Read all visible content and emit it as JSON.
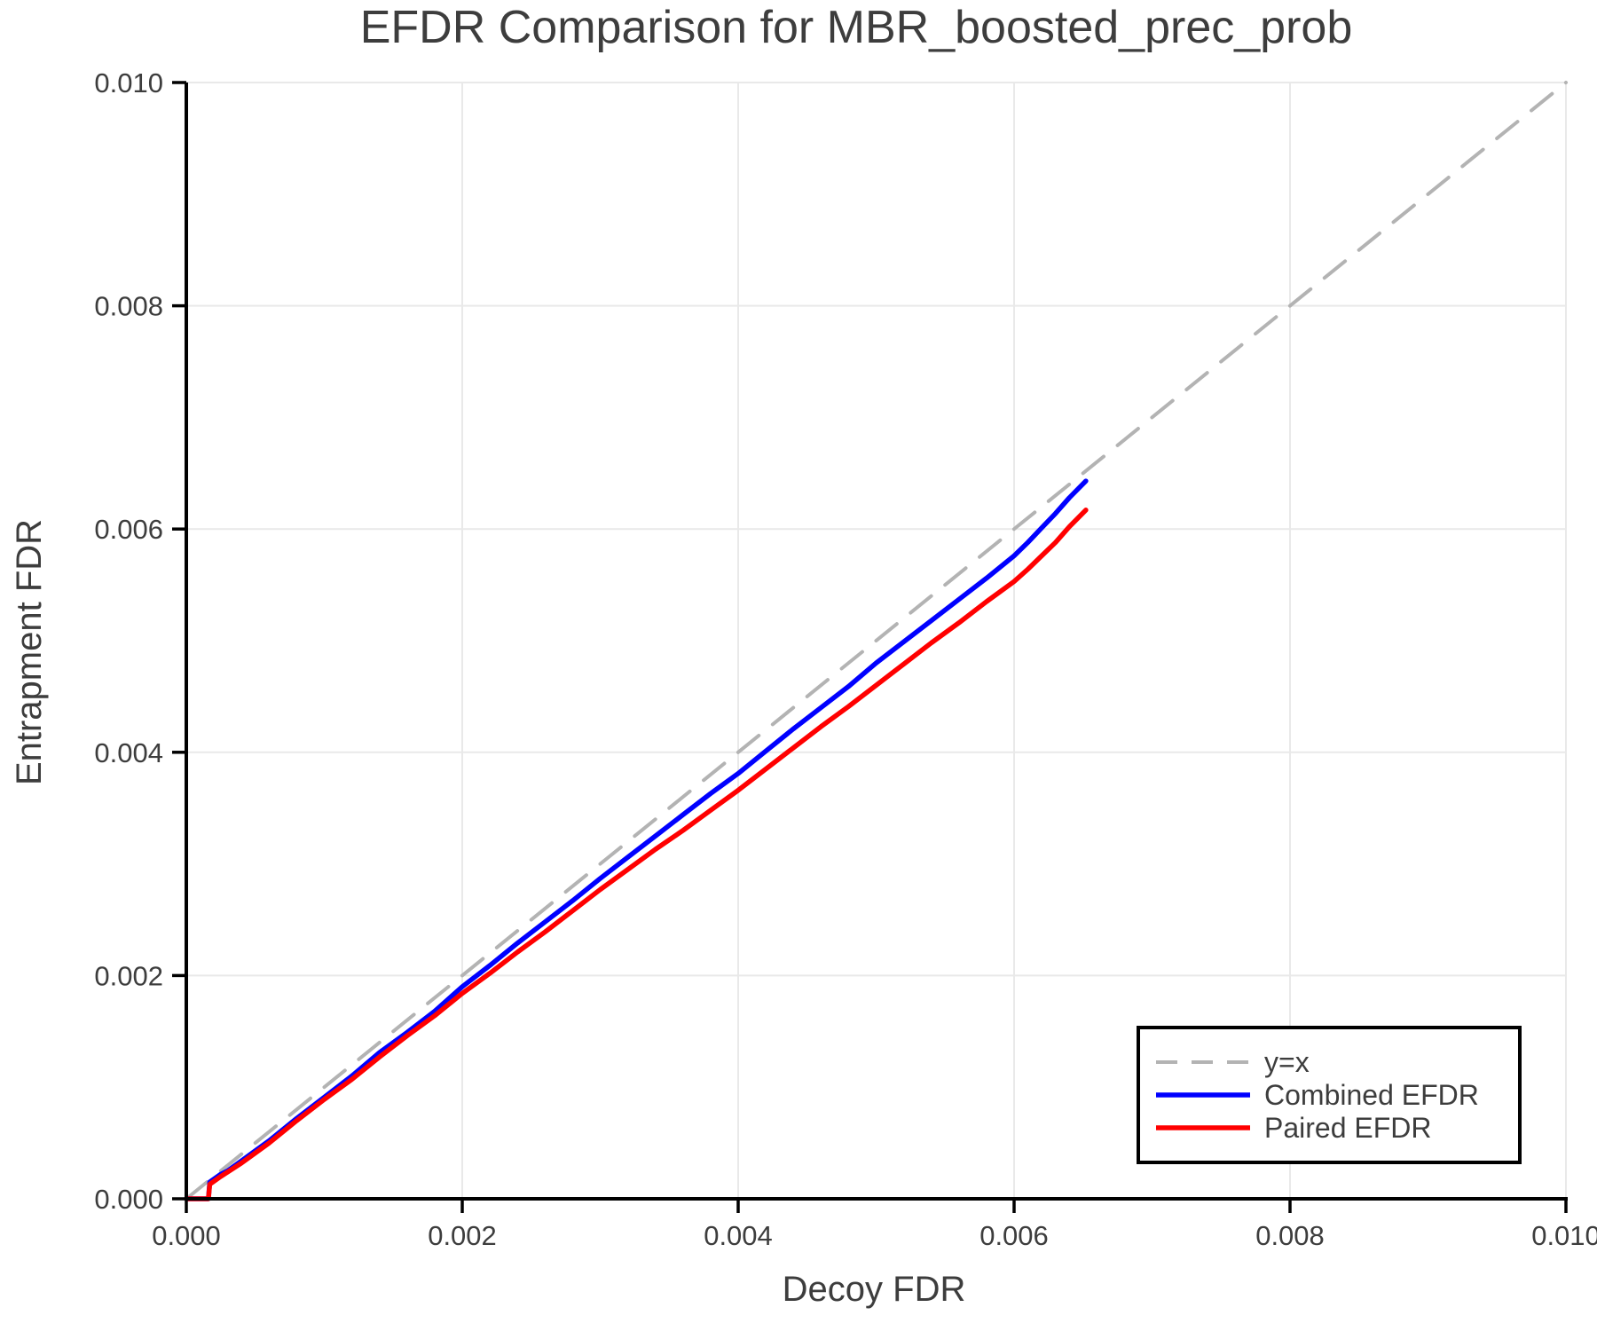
{
  "title": "EFDR Comparison for MBR_boosted_prec_prob",
  "chart_data": {
    "type": "line",
    "title": "EFDR Comparison for MBR_boosted_prec_prob",
    "xlabel": "Decoy FDR",
    "ylabel": "Entrapment FDR",
    "xlim": [
      0.0,
      0.01
    ],
    "ylim": [
      0.0,
      0.01
    ],
    "xtick_labels": [
      "0.000",
      "0.002",
      "0.004",
      "0.006",
      "0.008",
      "0.010"
    ],
    "ytick_labels": [
      "0.000",
      "0.002",
      "0.004",
      "0.006",
      "0.008",
      "0.010"
    ],
    "grid": true,
    "legend_position": "bottom-right",
    "series": [
      {
        "name": "y=x",
        "style": "dashed",
        "color": "#b3b3b3",
        "width": 4,
        "points": [
          [
            0.0,
            0.0
          ],
          [
            0.01,
            0.01
          ]
        ]
      },
      {
        "name": "Combined EFDR",
        "style": "solid",
        "color": "#0000ff",
        "width": 5.5,
        "points": [
          [
            0.0,
            0.0
          ],
          [
            0.00016,
            0.0
          ],
          [
            0.00017,
            0.00015
          ],
          [
            0.00025,
            0.00022
          ],
          [
            0.0003,
            0.00025
          ],
          [
            0.0004,
            0.00034
          ],
          [
            0.0005,
            0.00043
          ],
          [
            0.0006,
            0.00052
          ],
          [
            0.0008,
            0.00072
          ],
          [
            0.001,
            0.00091
          ],
          [
            0.0012,
            0.0011
          ],
          [
            0.0014,
            0.00131
          ],
          [
            0.0016,
            0.00149
          ],
          [
            0.0018,
            0.00168
          ],
          [
            0.002,
            0.0019
          ],
          [
            0.0022,
            0.00209
          ],
          [
            0.0024,
            0.00229
          ],
          [
            0.0026,
            0.00248
          ],
          [
            0.0028,
            0.00267
          ],
          [
            0.003,
            0.00287
          ],
          [
            0.0032,
            0.00306
          ],
          [
            0.0034,
            0.00325
          ],
          [
            0.0036,
            0.00344
          ],
          [
            0.0038,
            0.00363
          ],
          [
            0.004,
            0.00381
          ],
          [
            0.0042,
            0.00401
          ],
          [
            0.0044,
            0.00421
          ],
          [
            0.0046,
            0.0044
          ],
          [
            0.0048,
            0.00459
          ],
          [
            0.005,
            0.0048
          ],
          [
            0.0052,
            0.00499
          ],
          [
            0.0054,
            0.00518
          ],
          [
            0.0056,
            0.00537
          ],
          [
            0.0058,
            0.00556
          ],
          [
            0.006,
            0.00576
          ],
          [
            0.0061,
            0.00588
          ],
          [
            0.0062,
            0.00601
          ],
          [
            0.0063,
            0.00614
          ],
          [
            0.0064,
            0.00628
          ],
          [
            0.00652,
            0.00643
          ]
        ]
      },
      {
        "name": "Paired EFDR",
        "style": "solid",
        "color": "#ff0000",
        "width": 5.5,
        "points": [
          [
            0.0,
            0.0
          ],
          [
            0.00016,
            0.0
          ],
          [
            0.00017,
            0.00013
          ],
          [
            0.00025,
            0.0002
          ],
          [
            0.0003,
            0.00024
          ],
          [
            0.0004,
            0.00032
          ],
          [
            0.0005,
            0.00041
          ],
          [
            0.0006,
            0.0005
          ],
          [
            0.0008,
            0.0007
          ],
          [
            0.001,
            0.00089
          ],
          [
            0.0012,
            0.00107
          ],
          [
            0.0014,
            0.00127
          ],
          [
            0.0016,
            0.00146
          ],
          [
            0.0018,
            0.00164
          ],
          [
            0.002,
            0.00184
          ],
          [
            0.0022,
            0.00202
          ],
          [
            0.0024,
            0.00221
          ],
          [
            0.0026,
            0.00239
          ],
          [
            0.0028,
            0.00258
          ],
          [
            0.003,
            0.00277
          ],
          [
            0.0032,
            0.00295
          ],
          [
            0.0034,
            0.00313
          ],
          [
            0.0036,
            0.0033
          ],
          [
            0.0038,
            0.00348
          ],
          [
            0.004,
            0.00366
          ],
          [
            0.0042,
            0.00385
          ],
          [
            0.0044,
            0.00404
          ],
          [
            0.0046,
            0.00423
          ],
          [
            0.0048,
            0.00441
          ],
          [
            0.005,
            0.0046
          ],
          [
            0.0052,
            0.00479
          ],
          [
            0.0054,
            0.00498
          ],
          [
            0.0056,
            0.00516
          ],
          [
            0.0058,
            0.00535
          ],
          [
            0.006,
            0.00553
          ],
          [
            0.0061,
            0.00564
          ],
          [
            0.0062,
            0.00576
          ],
          [
            0.0063,
            0.00588
          ],
          [
            0.0064,
            0.00602
          ],
          [
            0.00652,
            0.00617
          ]
        ]
      }
    ],
    "colors": {
      "grid": "#e9e9e9",
      "spine": "#000000",
      "text": "#3d3d3d",
      "legend_border": "#000000",
      "legend_bg": "#ffffff"
    }
  }
}
